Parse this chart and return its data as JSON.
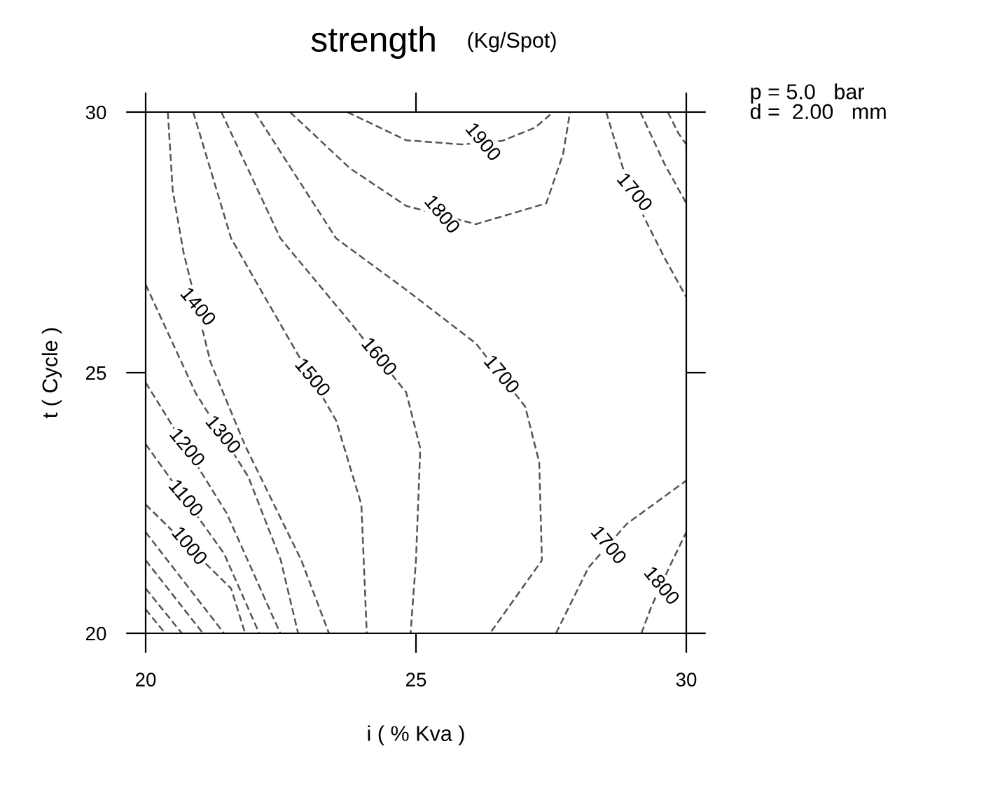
{
  "chart_data": {
    "type": "line",
    "title": "strength",
    "subtitle": "(Kg/Spot)",
    "xlabel": "i ( % Kva )",
    "ylabel": "t ( Cycle )",
    "xlim": [
      20,
      30
    ],
    "ylim": [
      20,
      30
    ],
    "xticks": [
      20,
      25,
      30
    ],
    "yticks": [
      20,
      25,
      30
    ],
    "grid": false,
    "legend": false,
    "marker": "none",
    "line_style": "dashed",
    "annotations": [
      "p = 5.0   bar",
      "d =  2.00   mm"
    ],
    "series": [
      {
        "name": "1900",
        "color": "#555555",
        "x": [
          23.73,
          24.82,
          25.85,
          26.6,
          27.2,
          27.54
        ],
        "values": [
          30,
          29.46,
          29.38,
          29.45,
          29.7,
          30
        ]
      },
      {
        "name": "1800",
        "color": "#555555",
        "x": [
          22.67,
          23.78,
          24.82,
          26.11,
          27.41,
          27.72,
          27.85
        ],
        "values": [
          30,
          28.92,
          28.2,
          27.85,
          28.25,
          29.19,
          30
        ]
      },
      {
        "name": "1700",
        "color": "#555555",
        "x": [
          28.52,
          28.83,
          29.22,
          29.61,
          30
        ],
        "values": [
          30,
          28.92,
          27.98,
          27.18,
          26.45
        ]
      },
      {
        "color": "#555555",
        "x": [
          29.15,
          29.6,
          30
        ],
        "values": [
          30,
          29.0,
          28.25
        ]
      },
      {
        "color": "#555555",
        "x": [
          29.66,
          29.85,
          30
        ],
        "values": [
          30,
          29.6,
          29.38
        ]
      },
      {
        "name": "1700",
        "color": "#555555",
        "x": [
          22.02,
          23.52,
          24.82,
          26.11,
          27.02,
          27.28,
          27.33,
          26.37
        ],
        "values": [
          30,
          27.58,
          26.59,
          25.56,
          24.35,
          23.28,
          21.4,
          20
        ]
      },
      {
        "name": "1600",
        "color": "#555555",
        "x": [
          21.4,
          22.49,
          23.78,
          24.82,
          25.08,
          25.0,
          24.9
        ],
        "values": [
          30,
          27.58,
          25.97,
          24.62,
          23.55,
          21.4,
          20
        ]
      },
      {
        "name": "1500",
        "color": "#555555",
        "x": [
          20.88,
          21.58,
          22.62,
          23.52,
          23.99,
          24.09
        ],
        "values": [
          30,
          27.58,
          25.7,
          24.09,
          22.47,
          20
        ]
      },
      {
        "name": "1400",
        "color": "#555555",
        "x": [
          20.41,
          20.5,
          20.7,
          21.2,
          21.84,
          22.88,
          23.39
        ],
        "values": [
          30,
          28.5,
          27.31,
          25.2,
          23.6,
          21.4,
          20
        ]
      },
      {
        "name": "1300",
        "color": "#555555",
        "x": [
          20,
          20.93,
          21.9,
          22.5,
          22.82
        ],
        "values": [
          26.69,
          24.6,
          23.0,
          21.4,
          20
        ]
      },
      {
        "name": "1200",
        "color": "#555555",
        "x": [
          20,
          21.5,
          22.49
        ],
        "values": [
          24.81,
          22.3,
          20
        ]
      },
      {
        "name": "1100",
        "color": "#555555",
        "x": [
          20,
          21.45,
          22.1
        ],
        "values": [
          23.63,
          21.53,
          20
        ]
      },
      {
        "name": "1000",
        "color": "#555555",
        "x": [
          20,
          21.58,
          21.84
        ],
        "values": [
          22.47,
          20.86,
          20
        ]
      },
      {
        "color": "#555555",
        "x": [
          20,
          21.45
        ],
        "values": [
          21.94,
          20
        ]
      },
      {
        "color": "#555555",
        "x": [
          20,
          21.06
        ],
        "values": [
          21.4,
          20
        ]
      },
      {
        "color": "#555555",
        "x": [
          20,
          20.67
        ],
        "values": [
          20.86,
          20
        ]
      },
      {
        "color": "#555555",
        "x": [
          20,
          20.36
        ],
        "values": [
          20.46,
          20
        ]
      },
      {
        "name": "1700",
        "color": "#555555",
        "x": [
          27.59,
          28.19,
          28.9,
          30
        ],
        "values": [
          20,
          21.26,
          22.1,
          22.93
        ]
      },
      {
        "name": "1800",
        "color": "#555555",
        "x": [
          29.17,
          29.35,
          29.7,
          30
        ],
        "values": [
          20,
          20.5,
          21.3,
          21.94
        ]
      }
    ]
  }
}
